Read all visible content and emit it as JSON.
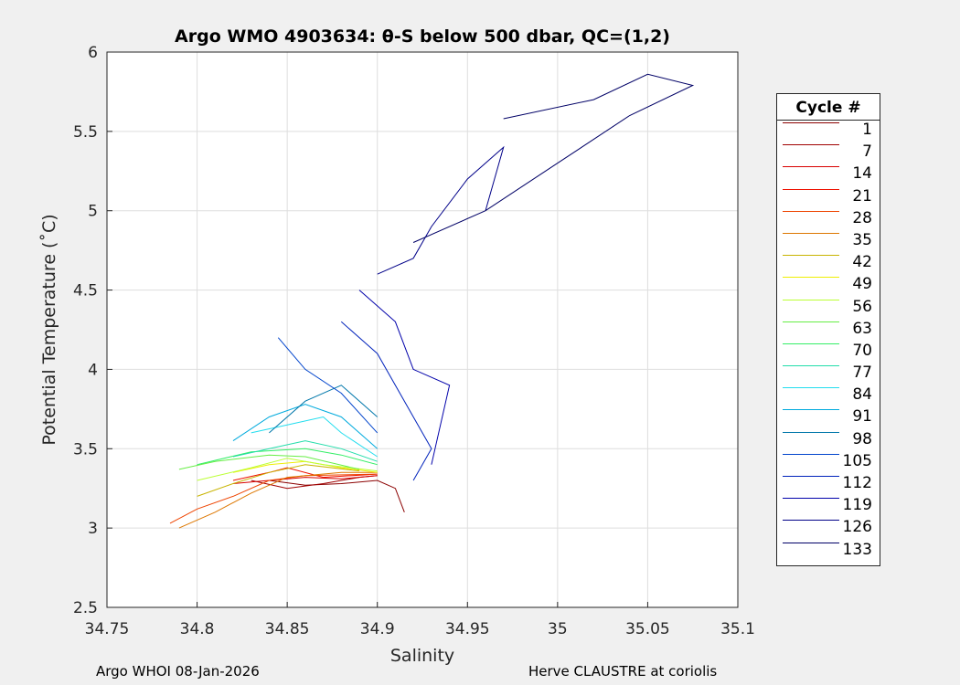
{
  "chart_data": {
    "type": "line",
    "title": "Argo WMO 4903634: θ-S below 500 dbar,  QC=(1,2)",
    "xlabel": "Salinity",
    "ylabel": "Potential Temperature (˚C)",
    "xlim": [
      34.75,
      35.1
    ],
    "ylim": [
      2.5,
      6
    ],
    "xticks": [
      "34.75",
      "34.8",
      "34.85",
      "34.9",
      "34.95",
      "35",
      "35.05",
      "35.1"
    ],
    "yticks": [
      "2.5",
      "3",
      "3.5",
      "4",
      "4.5",
      "5",
      "5.5",
      "6"
    ],
    "grid": true,
    "legend": {
      "title": "Cycle #",
      "placement": "outside-right",
      "entries": [
        {
          "label": "1",
          "color": "#8b0000"
        },
        {
          "label": "7",
          "color": "#a00000"
        },
        {
          "label": "14",
          "color": "#d80000"
        },
        {
          "label": "21",
          "color": "#ee1100"
        },
        {
          "label": "28",
          "color": "#ee4400"
        },
        {
          "label": "35",
          "color": "#dd7700"
        },
        {
          "label": "42",
          "color": "#c8b400"
        },
        {
          "label": "49",
          "color": "#eeee00"
        },
        {
          "label": "56",
          "color": "#bbff33"
        },
        {
          "label": "63",
          "color": "#66ee44"
        },
        {
          "label": "70",
          "color": "#33ee66"
        },
        {
          "label": "77",
          "color": "#22ddaa"
        },
        {
          "label": "84",
          "color": "#22ddee"
        },
        {
          "label": "91",
          "color": "#00aadd"
        },
        {
          "label": "98",
          "color": "#0077aa"
        },
        {
          "label": "105",
          "color": "#0044cc"
        },
        {
          "label": "112",
          "color": "#0022bb"
        },
        {
          "label": "119",
          "color": "#0000aa"
        },
        {
          "label": "126",
          "color": "#000088"
        },
        {
          "label": "133",
          "color": "#000066"
        }
      ]
    },
    "series": [
      {
        "label": "1",
        "color": "#8b0000",
        "x": [
          34.84,
          34.86,
          34.88,
          34.9,
          34.91,
          34.915
        ],
        "y": [
          3.3,
          3.27,
          3.28,
          3.3,
          3.25,
          3.1
        ]
      },
      {
        "label": "7",
        "color": "#a00000",
        "x": [
          34.83,
          34.85,
          34.87,
          34.89,
          34.9
        ],
        "y": [
          3.3,
          3.25,
          3.28,
          3.32,
          3.33
        ]
      },
      {
        "label": "14",
        "color": "#d80000",
        "x": [
          34.82,
          34.84,
          34.86,
          34.88,
          34.9
        ],
        "y": [
          3.28,
          3.3,
          3.32,
          3.31,
          3.33
        ]
      },
      {
        "label": "21",
        "color": "#ee1100",
        "x": [
          34.82,
          34.84,
          34.85,
          34.87,
          34.9
        ],
        "y": [
          3.3,
          3.35,
          3.38,
          3.32,
          3.34
        ]
      },
      {
        "label": "28",
        "color": "#ee4400",
        "x": [
          34.785,
          34.8,
          34.82,
          34.84,
          34.86,
          34.9
        ],
        "y": [
          3.03,
          3.12,
          3.2,
          3.3,
          3.33,
          3.34
        ]
      },
      {
        "label": "35",
        "color": "#dd7700",
        "x": [
          34.79,
          34.81,
          34.83,
          34.85,
          34.88,
          34.9
        ],
        "y": [
          3.0,
          3.1,
          3.22,
          3.32,
          3.35,
          3.35
        ]
      },
      {
        "label": "42",
        "color": "#c8b400",
        "x": [
          34.8,
          34.82,
          34.84,
          34.86,
          34.89
        ],
        "y": [
          3.2,
          3.28,
          3.35,
          3.4,
          3.36
        ]
      },
      {
        "label": "49",
        "color": "#eeee00",
        "x": [
          34.82,
          34.84,
          34.86,
          34.88,
          34.9
        ],
        "y": [
          3.35,
          3.4,
          3.42,
          3.38,
          3.35
        ]
      },
      {
        "label": "56",
        "color": "#bbff33",
        "x": [
          34.8,
          34.83,
          34.85,
          34.87,
          34.9
        ],
        "y": [
          3.3,
          3.38,
          3.44,
          3.4,
          3.36
        ]
      },
      {
        "label": "63",
        "color": "#66ee44",
        "x": [
          34.79,
          34.81,
          34.84,
          34.86,
          34.89
        ],
        "y": [
          3.37,
          3.42,
          3.46,
          3.45,
          3.37
        ]
      },
      {
        "label": "70",
        "color": "#33ee66",
        "x": [
          34.8,
          34.83,
          34.86,
          34.88,
          34.9
        ],
        "y": [
          3.4,
          3.48,
          3.5,
          3.46,
          3.4
        ]
      },
      {
        "label": "77",
        "color": "#22ddaa",
        "x": [
          34.82,
          34.84,
          34.86,
          34.88,
          34.9
        ],
        "y": [
          3.45,
          3.5,
          3.55,
          3.5,
          3.42
        ]
      },
      {
        "label": "84",
        "color": "#22ddee",
        "x": [
          34.83,
          34.85,
          34.87,
          34.88,
          34.9
        ],
        "y": [
          3.6,
          3.65,
          3.7,
          3.6,
          3.45
        ]
      },
      {
        "label": "91",
        "color": "#00aadd",
        "x": [
          34.82,
          34.84,
          34.86,
          34.88,
          34.9
        ],
        "y": [
          3.55,
          3.7,
          3.78,
          3.7,
          3.5
        ]
      },
      {
        "label": "98",
        "color": "#0077aa",
        "x": [
          34.84,
          34.86,
          34.88,
          34.9
        ],
        "y": [
          3.6,
          3.8,
          3.9,
          3.7
        ]
      },
      {
        "label": "105",
        "color": "#0044cc",
        "x": [
          34.845,
          34.86,
          34.88,
          34.9
        ],
        "y": [
          4.2,
          4.0,
          3.85,
          3.6
        ]
      },
      {
        "label": "112",
        "color": "#0022bb",
        "x": [
          34.88,
          34.9,
          34.92,
          34.93,
          34.92
        ],
        "y": [
          4.3,
          4.1,
          3.7,
          3.5,
          3.3
        ]
      },
      {
        "label": "119",
        "color": "#0000aa",
        "x": [
          34.89,
          34.91,
          34.92,
          34.94,
          34.93
        ],
        "y": [
          4.5,
          4.3,
          4.0,
          3.9,
          3.4
        ]
      },
      {
        "label": "126",
        "color": "#000088",
        "x": [
          34.9,
          34.92,
          34.93,
          34.95,
          34.97,
          34.96
        ],
        "y": [
          4.6,
          4.7,
          4.9,
          5.2,
          5.4,
          5.0
        ]
      },
      {
        "label": "133",
        "color": "#000066",
        "x": [
          34.92,
          34.96,
          35.0,
          35.04,
          35.075,
          35.05,
          35.02,
          34.97
        ],
        "y": [
          4.8,
          5.0,
          5.3,
          5.6,
          5.79,
          5.86,
          5.7,
          5.58
        ]
      }
    ]
  },
  "footer": {
    "left": "Argo WHOI 08-Jan-2026",
    "right": "Herve CLAUSTRE at coriolis"
  }
}
